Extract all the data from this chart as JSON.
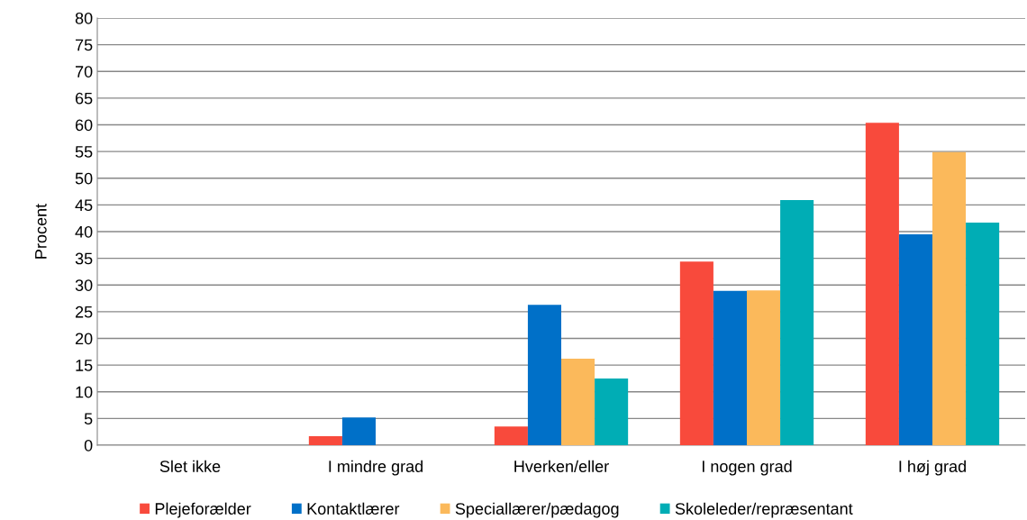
{
  "chart_data": {
    "type": "bar",
    "ylabel": "Procent",
    "categories": [
      "Slet ikke",
      "I mindre grad",
      "Hverken/eller",
      "I nogen grad",
      "I høj grad"
    ],
    "series": [
      {
        "name": "Plejeforælder",
        "color": "#f84a3c",
        "values": [
          0,
          1.7,
          3.5,
          34.4,
          60.4
        ]
      },
      {
        "name": "Kontaktlærer",
        "color": "#0070c8",
        "values": [
          0,
          5.2,
          26.3,
          28.9,
          39.5
        ]
      },
      {
        "name": "Speciallærer/pædagog",
        "color": "#fbb95b",
        "values": [
          0,
          0,
          16.2,
          29.0,
          54.9
        ]
      },
      {
        "name": "Skoleleder/repræsentant",
        "color": "#00adb5",
        "values": [
          0,
          0,
          12.5,
          45.9,
          41.7
        ]
      }
    ],
    "ylim": [
      0,
      80
    ],
    "yticks": [
      0,
      5,
      10,
      15,
      20,
      25,
      30,
      35,
      40,
      45,
      50,
      55,
      60,
      65,
      70,
      75,
      80
    ],
    "grid": "y",
    "legend": "bottom"
  }
}
